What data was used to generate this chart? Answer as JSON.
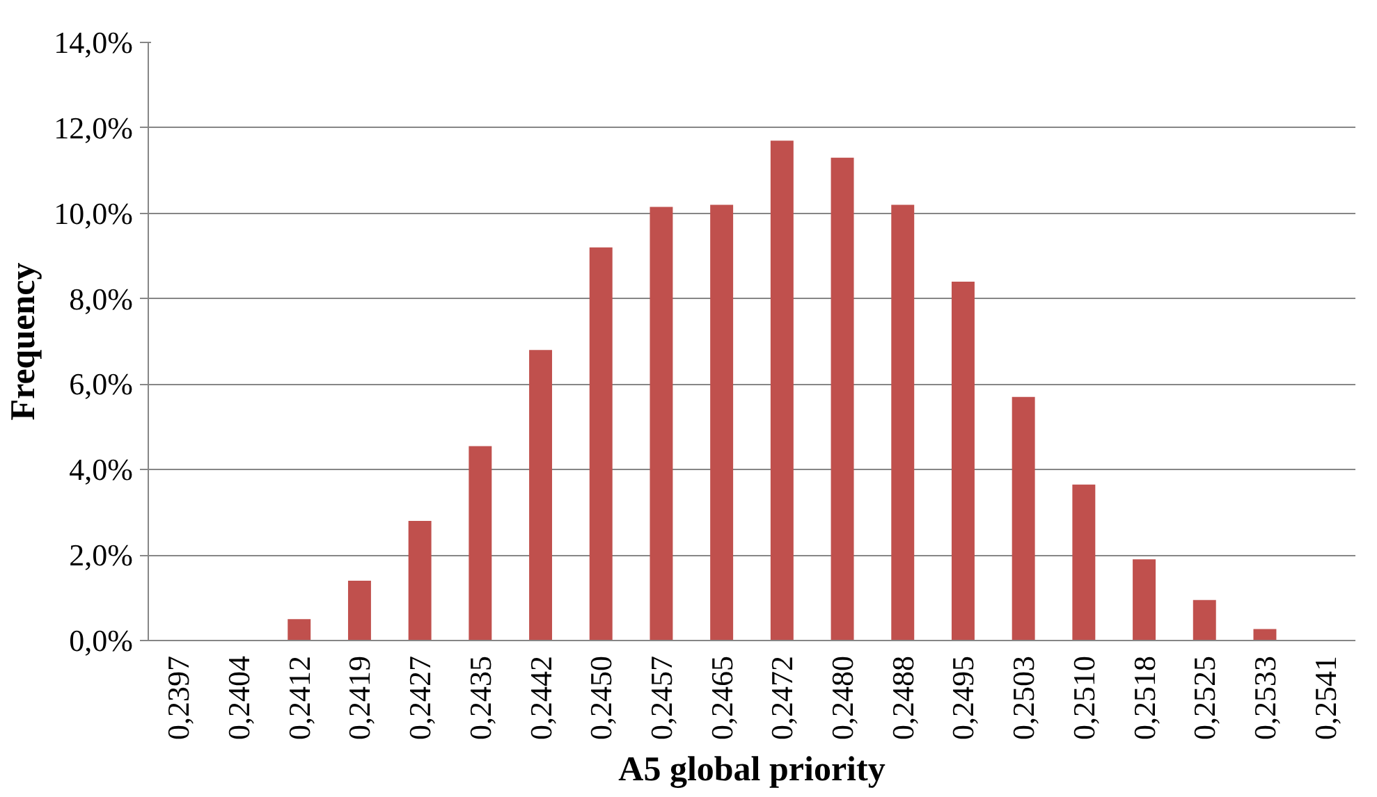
{
  "chart_data": {
    "type": "bar",
    "xlabel": "A5 global priority",
    "ylabel": "Frequency",
    "categories": [
      "0,2397",
      "0,2404",
      "0,2412",
      "0,2419",
      "0,2427",
      "0,2435",
      "0,2442",
      "0,2450",
      "0,2457",
      "0,2465",
      "0,2472",
      "0,2480",
      "0,2488",
      "0,2495",
      "0,2503",
      "0,2510",
      "0,2518",
      "0,2525",
      "0,2533",
      "0,2541"
    ],
    "values": [
      0,
      0,
      0.5,
      1.4,
      2.8,
      4.55,
      6.8,
      9.2,
      10.15,
      10.2,
      11.7,
      11.3,
      10.2,
      8.4,
      5.7,
      3.65,
      1.9,
      0.95,
      0.27,
      0
    ],
    "color": "#c0504d",
    "ylim": [
      0,
      14
    ],
    "yticks": [
      {
        "value": 0,
        "label": "0,0%"
      },
      {
        "value": 2,
        "label": "2,0%"
      },
      {
        "value": 4,
        "label": "4,0%"
      },
      {
        "value": 6,
        "label": "6,0%"
      },
      {
        "value": 8,
        "label": "8,0%"
      },
      {
        "value": 10,
        "label": "10,0%"
      },
      {
        "value": 12,
        "label": "12,0%"
      },
      {
        "value": 14,
        "label": "14,0%"
      }
    ],
    "grid": "y"
  }
}
